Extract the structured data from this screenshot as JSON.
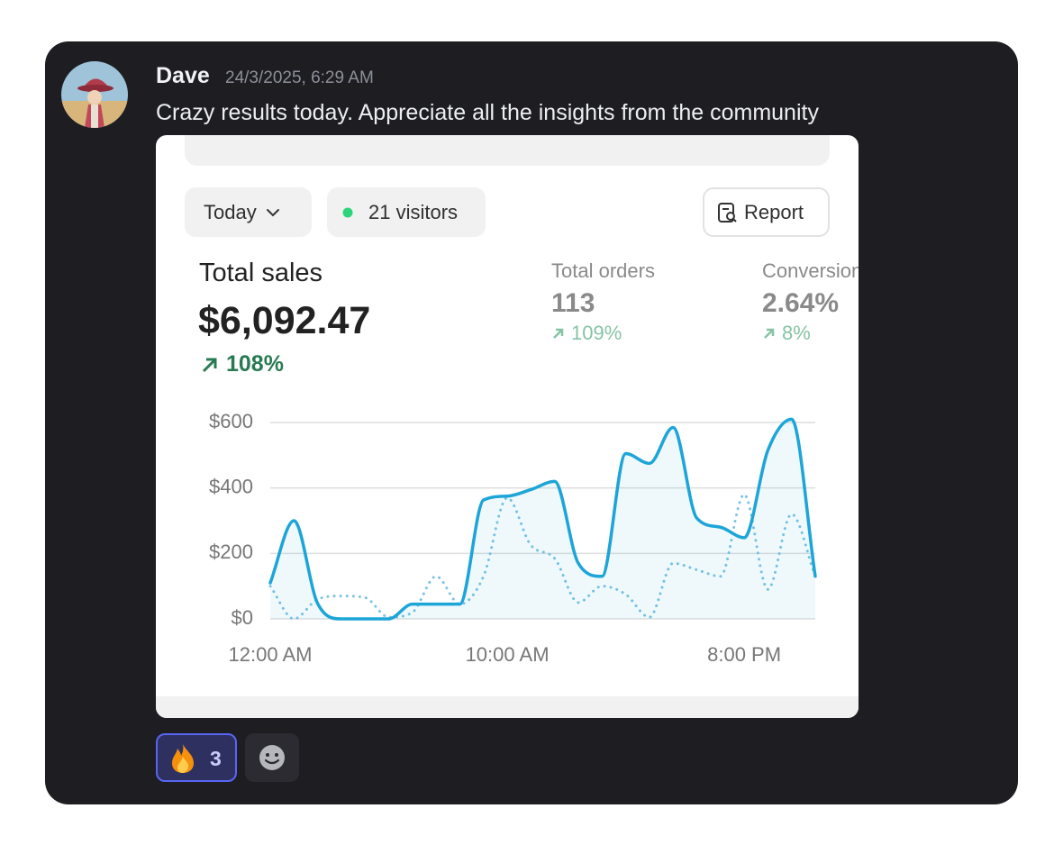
{
  "message": {
    "author": "Dave",
    "timestamp": "24/3/2025, 6:29 AM",
    "text": "Crazy results today. Appreciate all the insights from the community"
  },
  "embed": {
    "period_button": "Today",
    "visitors": "21 visitors",
    "report_button": "Report",
    "metrics": [
      {
        "label": "Total sales",
        "value": "$6,092.47",
        "change": "108%"
      },
      {
        "label": "Total orders",
        "value": "113",
        "change": "109%"
      },
      {
        "label": "Conversion",
        "value": "2.64%",
        "change": "8%"
      }
    ]
  },
  "chart_data": {
    "type": "line",
    "x": [
      0,
      1,
      2,
      3,
      4,
      5,
      6,
      7,
      8,
      9,
      10,
      11,
      12,
      13,
      14,
      15,
      16,
      17,
      18,
      19,
      20,
      21,
      22,
      23
    ],
    "series": [
      {
        "color": "#1ea5d8",
        "fill": true,
        "style": "solid",
        "values": [
          110,
          300,
          47,
          0,
          0,
          0,
          45,
          45,
          45,
          363,
          375,
          395,
          420,
          170,
          130,
          505,
          475,
          585,
          308,
          280,
          248,
          515,
          610,
          130
        ]
      },
      {
        "color": "#7cc3e3",
        "fill": false,
        "style": "dotted",
        "values": [
          100,
          0,
          60,
          70,
          65,
          5,
          20,
          130,
          45,
          130,
          370,
          225,
          185,
          50,
          100,
          75,
          5,
          170,
          150,
          130,
          380,
          90,
          320,
          130
        ]
      }
    ],
    "xlim": [
      0,
      23
    ],
    "xticks": [
      {
        "value": 0,
        "label": "12:00 AM"
      },
      {
        "value": 10,
        "label": "10:00 AM"
      },
      {
        "value": 20,
        "label": "8:00 PM"
      }
    ],
    "ylim": [
      0,
      600
    ],
    "yticks": [
      {
        "value": 0,
        "label": "$0"
      },
      {
        "value": 200,
        "label": "$200"
      },
      {
        "value": 400,
        "label": "$400"
      },
      {
        "value": 600,
        "label": "$600"
      }
    ],
    "grid": true
  },
  "reactions": [
    {
      "count": 3
    }
  ]
}
